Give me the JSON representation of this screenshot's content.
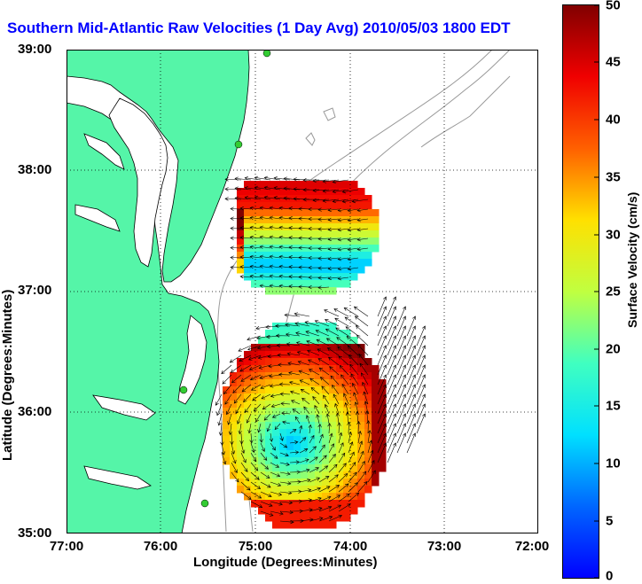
{
  "title": "Southern Mid-Atlantic Raw Velocities (1 Day Avg) 2010/05/03 1800 EDT",
  "x_axis_label": "Longitude (Degrees:Minutes)",
  "y_axis_label": "Latitude (Degrees:Minutes)",
  "x_ticks": [
    "77:00",
    "76:00",
    "75:00",
    "74:00",
    "73:00",
    "72:00"
  ],
  "y_ticks": [
    "39:00",
    "38:00",
    "37:00",
    "36:00",
    "35:00"
  ],
  "colorbar": {
    "label": "Surface Velocity (cm/s)",
    "ticks": [
      "0",
      "5",
      "10",
      "15",
      "20",
      "25",
      "30",
      "35",
      "40",
      "45",
      "50"
    ],
    "min": 0,
    "max": 50
  },
  "map_extent": {
    "lon_min": -77,
    "lon_max": -72,
    "lat_min": 35,
    "lat_max": 39
  },
  "colors": {
    "land": "#55f5a8",
    "coast": "#000000",
    "bathymetry": "#999999",
    "grid": "#000000",
    "title": "#0000ff",
    "station": "#33cc33"
  }
}
